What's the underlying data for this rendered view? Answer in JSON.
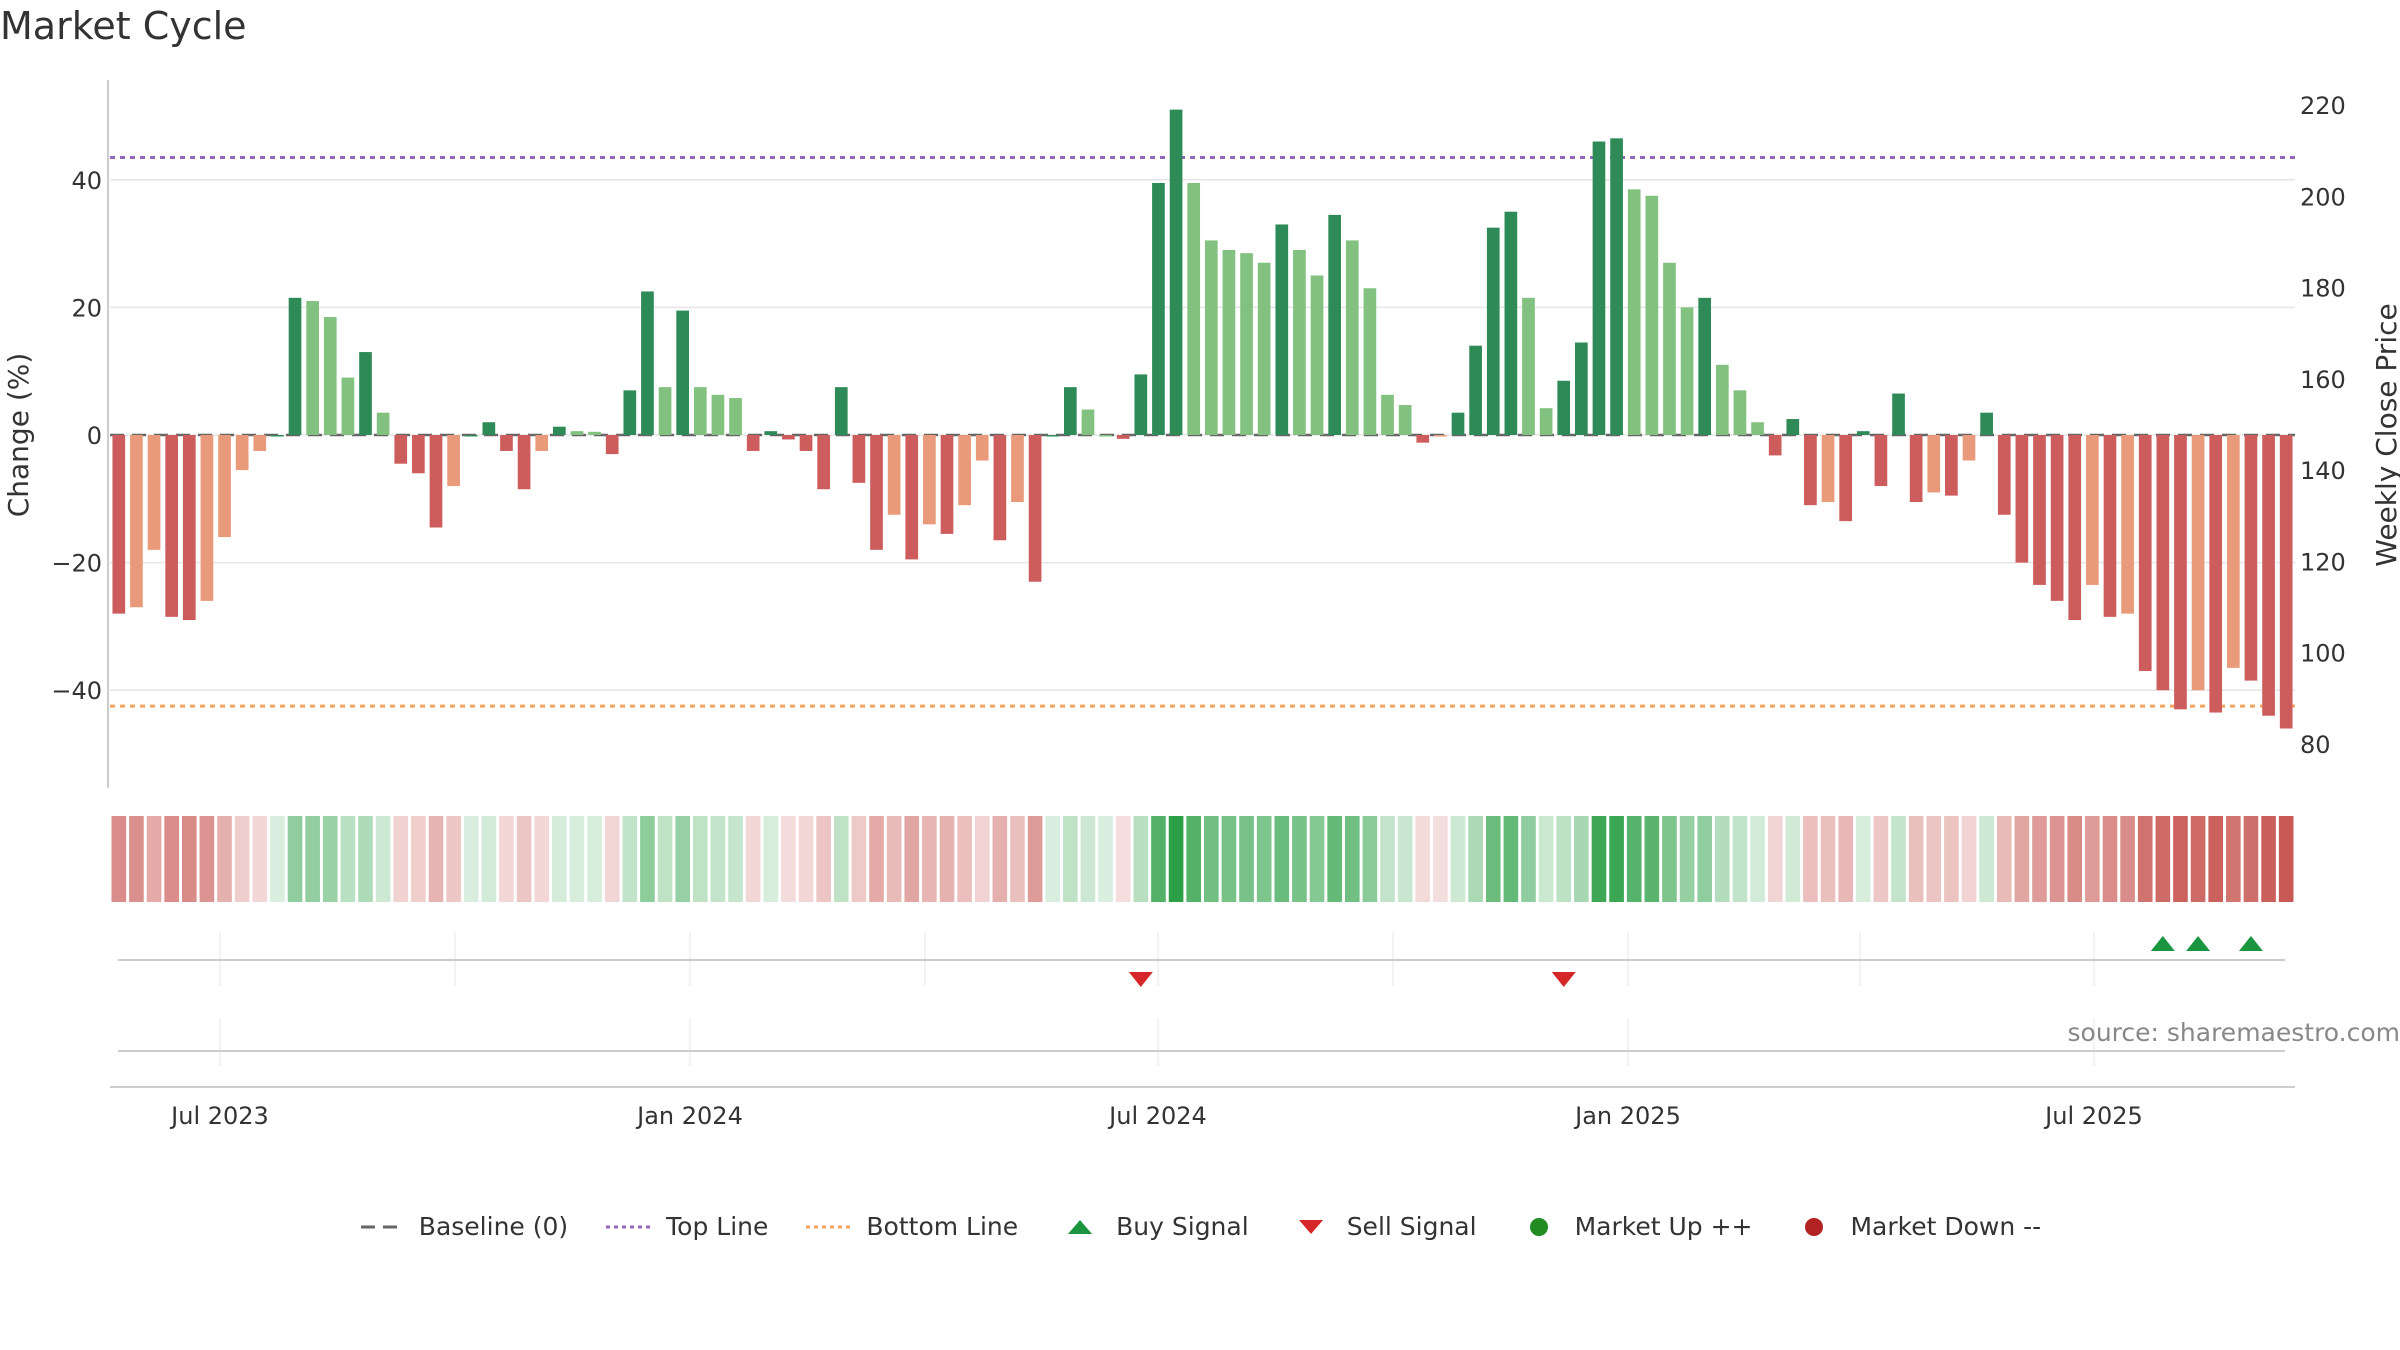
{
  "title": "Market Cycle",
  "source": "source: sharemaestro.com",
  "colors": {
    "up_strong": "#2e8b57",
    "up_light": "#82c17f",
    "down_strong": "#cd5c5c",
    "down_light": "#e89a7a",
    "top_line": "#9467bd",
    "bottom_line": "#f4a460",
    "buy": "#1a9641",
    "sell": "#d62728",
    "market_up": "#228b22",
    "market_down": "#b22222"
  },
  "legend": [
    {
      "label": "Baseline (0)",
      "symbol": "dash",
      "color": "#666666"
    },
    {
      "label": "Top Line",
      "symbol": "dot",
      "color": "#9467bd"
    },
    {
      "label": "Bottom Line",
      "symbol": "dot",
      "color": "#f4a460"
    },
    {
      "label": "Buy Signal",
      "symbol": "triangle-up",
      "color": "#1a9641"
    },
    {
      "label": "Sell Signal",
      "symbol": "triangle-down",
      "color": "#d62728"
    },
    {
      "label": "Market Up ++",
      "symbol": "circle",
      "color": "#228b22"
    },
    {
      "label": "Market Down --",
      "symbol": "circle",
      "color": "#b22222"
    }
  ],
  "chart_data": {
    "type": "bar",
    "title": "Market Cycle",
    "ylabel": "Change (%)",
    "y2label": "Weekly Close Price",
    "ylim": [
      -55,
      55
    ],
    "y2lim": [
      75,
      225
    ],
    "yticks": [
      -40,
      -20,
      0,
      20,
      40
    ],
    "y2ticks": [
      80,
      100,
      120,
      140,
      160,
      180,
      200,
      220
    ],
    "x_ticks": [
      "Jul 2023",
      "Jan 2024",
      "Jul 2024",
      "Jan 2025",
      "Jul 2025"
    ],
    "top_line": 43.5,
    "bottom_line": -42.5,
    "baseline": 0,
    "grid": true,
    "legend_position": "bottom",
    "values": [
      -28,
      -27,
      -18,
      -28.5,
      -29,
      -26,
      -16,
      -5.5,
      -2.5,
      0,
      21.5,
      21,
      18.5,
      9,
      13,
      3.5,
      -4.5,
      -6,
      -14.5,
      -8,
      0,
      2,
      -2.5,
      -8.5,
      -2.5,
      1.3,
      0.6,
      0.5,
      -3,
      7,
      22.5,
      7.5,
      19.5,
      7.5,
      6.3,
      5.8,
      -2.5,
      0.6,
      -0.7,
      -2.5,
      -8.5,
      7.5,
      -7.5,
      -18,
      -12.5,
      -19.5,
      -14,
      -15.5,
      -11,
      -4,
      -16.5,
      -10.5,
      -23,
      0,
      7.5,
      4,
      0,
      -0.6,
      9.5,
      39.5,
      51,
      39.5,
      30.5,
      29,
      28.5,
      27,
      33,
      29,
      25,
      34.5,
      30.5,
      23,
      6.3,
      4.7,
      -1.2,
      -0.2,
      3.5,
      14,
      32.5,
      35,
      21.5,
      4.2,
      8.5,
      14.5,
      46,
      46.5,
      38.5,
      37.5,
      27,
      20,
      21.5,
      11,
      7,
      2,
      -3.2,
      2.5,
      -11,
      -10.5,
      -13.5,
      0.6,
      -8,
      6.5,
      -10.5,
      -9,
      -9.5,
      -4,
      3.5,
      -12.5,
      -20,
      -23.5,
      -26,
      -29,
      -23.5,
      -28.5,
      -28,
      -37,
      -40,
      -43,
      -40,
      -43.5,
      -36.5,
      -38.5,
      -44,
      -46
    ],
    "buy_signals": [
      116,
      118,
      121
    ],
    "sell_signals": [
      58,
      82
    ],
    "market_up_signals": [],
    "market_down_signals": []
  }
}
